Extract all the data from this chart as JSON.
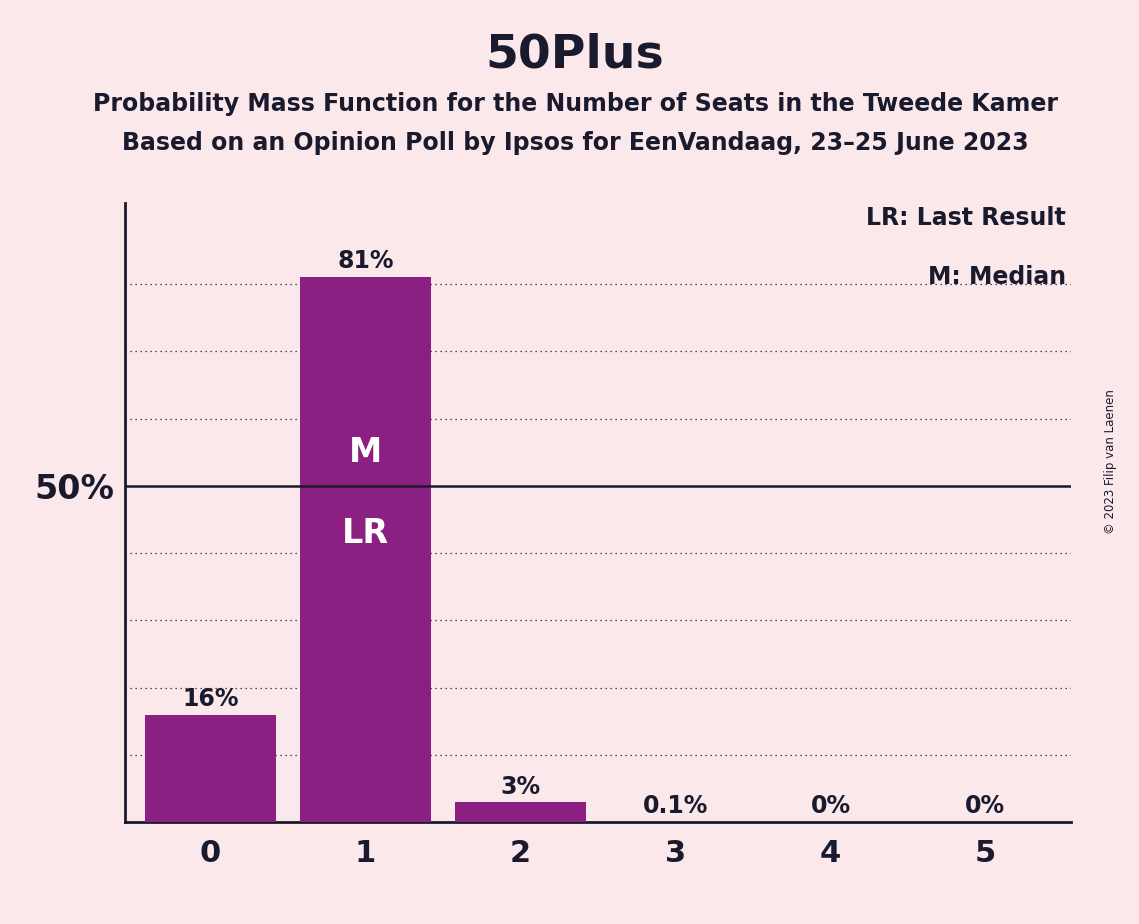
{
  "title": "50Plus",
  "subtitle1": "Probability Mass Function for the Number of Seats in the Tweede Kamer",
  "subtitle2": "Based on an Opinion Poll by Ipsos for EenVandaag, 23–25 June 2023",
  "copyright": "© 2023 Filip van Laenen",
  "categories": [
    0,
    1,
    2,
    3,
    4,
    5
  ],
  "values": [
    0.16,
    0.81,
    0.03,
    0.001,
    0.0,
    0.0
  ],
  "labels": [
    "16%",
    "81%",
    "3%",
    "0.1%",
    "0%",
    "0%"
  ],
  "bar_color": "#8B2082",
  "background_color": "#FAE8EA",
  "fifty_pct_line": 0.5,
  "ylim_max": 0.92,
  "legend_lr": "LR: Last Result",
  "legend_m": "M: Median",
  "bar_text_m": "M",
  "bar_text_lr": "LR",
  "median_bar_idx": 1,
  "ylabel_text": "50%",
  "title_fontsize": 34,
  "subtitle_fontsize": 17,
  "label_fontsize": 17,
  "tick_fontsize": 21,
  "bar_text_fontsize": 24,
  "legend_fontsize": 17,
  "dotted_grid_values": [
    0.1,
    0.2,
    0.3,
    0.4,
    0.6,
    0.7,
    0.8
  ],
  "text_color": "#1a1a2e"
}
